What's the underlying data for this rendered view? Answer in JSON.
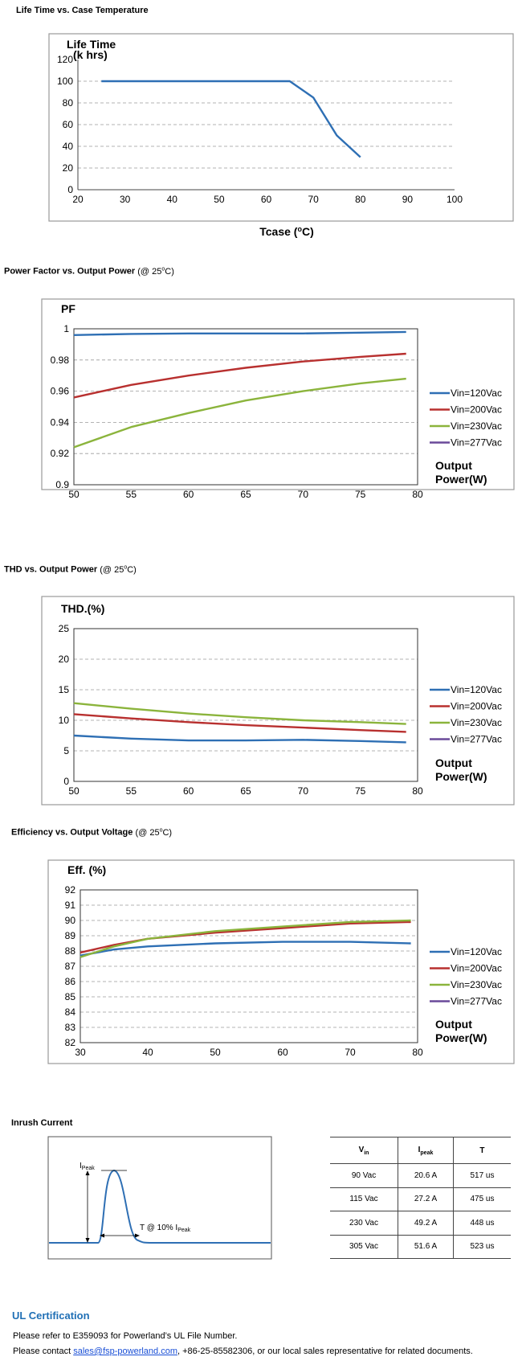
{
  "sections": {
    "life": {
      "title": "Life Time vs. Case Temperature"
    },
    "pf": {
      "title": "Power Factor vs. Output Power",
      "cond_pre": "(@ 25",
      "cond_sup": "o",
      "cond_post": "C)"
    },
    "thd": {
      "title": "THD vs. Output Power",
      "cond_pre": "(@ 25",
      "cond_sup": "o",
      "cond_post": "C)"
    },
    "eff": {
      "title": "Efficiency vs. Output Voltage",
      "cond_pre": "(@ 25",
      "cond_sup": "o",
      "cond_post": "C)"
    },
    "inrush": {
      "title": "Inrush Current"
    }
  },
  "colors": {
    "blue": "#2e6fb4",
    "red": "#b8302f",
    "green": "#8bb43c",
    "purple": "#6a4a9a"
  },
  "chart_data": [
    {
      "id": "life",
      "type": "line",
      "ylabel_line1": "Life Time",
      "ylabel_line2": "(k hrs)",
      "xlabel_pre": "Tcase (",
      "xlabel_sup": "o",
      "xlabel_post": "C)",
      "xlim": [
        20,
        100
      ],
      "ylim": [
        0,
        120
      ],
      "xticks": [
        20,
        30,
        40,
        50,
        60,
        70,
        80,
        90,
        100
      ],
      "yticks": [
        0,
        20,
        40,
        60,
        80,
        100,
        120
      ],
      "grid": true,
      "series": [
        {
          "color": "#2e6fb4",
          "x": [
            25,
            65,
            70,
            75,
            80
          ],
          "y": [
            100,
            100,
            85,
            50,
            30
          ]
        }
      ]
    },
    {
      "id": "pf",
      "type": "line",
      "ylabel": "PF",
      "xlabel_line1": "Output",
      "xlabel_line2": "Power(W)",
      "xlim": [
        50,
        80
      ],
      "ylim": [
        0.9,
        1
      ],
      "xticks": [
        50,
        55,
        60,
        65,
        70,
        75,
        80
      ],
      "yticks": [
        0.9,
        0.92,
        0.94,
        0.96,
        0.98,
        1
      ],
      "grid": true,
      "legend_position": "right",
      "series": [
        {
          "name": "Vin=120Vac",
          "color": "#2e6fb4",
          "x": [
            50,
            55,
            60,
            65,
            70,
            75,
            79
          ],
          "y": [
            0.996,
            0.9967,
            0.997,
            0.997,
            0.997,
            0.9975,
            0.998
          ]
        },
        {
          "name": "Vin=200Vac",
          "color": "#b8302f",
          "x": [
            50,
            55,
            60,
            65,
            70,
            75,
            79
          ],
          "y": [
            0.956,
            0.964,
            0.97,
            0.975,
            0.979,
            0.982,
            0.984
          ]
        },
        {
          "name": "Vin=230Vac",
          "color": "#8bb43c",
          "x": [
            50,
            55,
            60,
            65,
            70,
            75,
            79
          ],
          "y": [
            0.924,
            0.937,
            0.946,
            0.954,
            0.96,
            0.965,
            0.968
          ]
        },
        {
          "name": "Vin=277Vac",
          "color": "#6a4a9a",
          "x": [],
          "y": []
        }
      ]
    },
    {
      "id": "thd",
      "type": "line",
      "ylabel": "THD.(%)",
      "xlabel_line1": "Output",
      "xlabel_line2": "Power(W)",
      "xlim": [
        50,
        80
      ],
      "ylim": [
        0,
        25
      ],
      "xticks": [
        50,
        55,
        60,
        65,
        70,
        75,
        80
      ],
      "yticks": [
        0,
        5,
        10,
        15,
        20,
        25
      ],
      "grid": true,
      "legend_position": "right",
      "series": [
        {
          "name": "Vin=120Vac",
          "color": "#2e6fb4",
          "x": [
            50,
            55,
            60,
            65,
            70,
            75,
            79
          ],
          "y": [
            7.5,
            7.0,
            6.7,
            6.7,
            6.8,
            6.6,
            6.4
          ]
        },
        {
          "name": "Vin=200Vac",
          "color": "#b8302f",
          "x": [
            50,
            55,
            60,
            65,
            70,
            75,
            79
          ],
          "y": [
            11.0,
            10.3,
            9.7,
            9.2,
            8.8,
            8.4,
            8.1
          ]
        },
        {
          "name": "Vin=230Vac",
          "color": "#8bb43c",
          "x": [
            50,
            55,
            60,
            65,
            70,
            75,
            79
          ],
          "y": [
            12.8,
            11.9,
            11.1,
            10.5,
            10.0,
            9.7,
            9.4
          ]
        },
        {
          "name": "Vin=277Vac",
          "color": "#6a4a9a",
          "x": [],
          "y": []
        }
      ]
    },
    {
      "id": "eff",
      "type": "line",
      "ylabel": "Eff. (%)",
      "xlabel_line1": "Output",
      "xlabel_line2": "Power(W)",
      "xlim": [
        30,
        80
      ],
      "ylim": [
        82,
        92
      ],
      "xticks": [
        30,
        40,
        50,
        60,
        70,
        80
      ],
      "yticks": [
        82,
        83,
        84,
        85,
        86,
        87,
        88,
        89,
        90,
        91,
        92
      ],
      "grid": true,
      "legend_position": "right",
      "series": [
        {
          "name": "Vin=120Vac",
          "color": "#2e6fb4",
          "x": [
            30,
            35,
            40,
            50,
            60,
            70,
            79
          ],
          "y": [
            87.7,
            88.1,
            88.3,
            88.5,
            88.6,
            88.6,
            88.5
          ]
        },
        {
          "name": "Vin=200Vac",
          "color": "#b8302f",
          "x": [
            30,
            35,
            40,
            50,
            60,
            70,
            79
          ],
          "y": [
            87.9,
            88.4,
            88.8,
            89.2,
            89.5,
            89.8,
            89.9
          ]
        },
        {
          "name": "Vin=230Vac",
          "color": "#8bb43c",
          "x": [
            30,
            35,
            40,
            50,
            60,
            70,
            79
          ],
          "y": [
            87.6,
            88.3,
            88.8,
            89.3,
            89.6,
            89.9,
            90.0
          ]
        },
        {
          "name": "Vin=277Vac",
          "color": "#6a4a9a",
          "x": [],
          "y": []
        }
      ]
    },
    {
      "id": "inrush_table",
      "type": "table",
      "headers": {
        "vin_main": "V",
        "vin_sub": "in",
        "ipeak_main": "I",
        "ipeak_sub": "peak",
        "t": "T"
      },
      "rows": [
        {
          "vin": "90 Vac",
          "ipeak": "20.6 A",
          "t": "517 us"
        },
        {
          "vin": "115 Vac",
          "ipeak": "27.2 A",
          "t": "475 us"
        },
        {
          "vin": "230 Vac",
          "ipeak": "49.2 A",
          "t": "448 us"
        },
        {
          "vin": "305 Vac",
          "ipeak": "51.6 A",
          "t": "523 us"
        }
      ]
    }
  ],
  "inrush_diagram": {
    "peak_label_main": "I",
    "peak_label_sub": "Peak",
    "t_label_main": "T @ 10% I",
    "t_label_sub": "Peak"
  },
  "ul": {
    "title": "UL Certification",
    "line1": "Please refer to E359093 for Powerland’s UL File Number.",
    "line2_pre": "Please contact ",
    "email": "sales@fsp-powerland.com",
    "line2_post": ", +86-25-85582306, or our local sales representative for related documents."
  }
}
